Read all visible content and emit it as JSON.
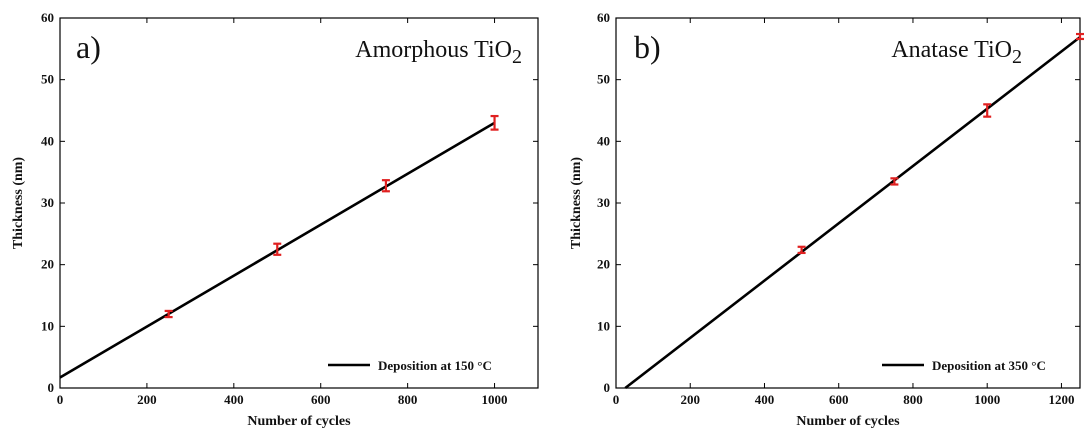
{
  "chart_data": [
    {
      "type": "line",
      "panel_label": "a)",
      "material": {
        "base": "Amorphous TiO",
        "sub": "2"
      },
      "xlabel": "Number of cycles",
      "ylabel": "Thickness (nm)",
      "xlim": [
        0,
        1100
      ],
      "ylim": [
        0,
        60
      ],
      "xticks": [
        0,
        200,
        400,
        600,
        800,
        1000
      ],
      "yticks": [
        0,
        10,
        20,
        30,
        40,
        50,
        60
      ],
      "grid": false,
      "legend_position": "bottom-right",
      "fit": {
        "name": "Deposition at 150 °C",
        "x": [
          0,
          1000
        ],
        "y": [
          1.7,
          43.0
        ],
        "color": "#000000"
      },
      "points": {
        "color": "#e02020",
        "x": [
          250,
          500,
          750,
          1000
        ],
        "y": [
          12.0,
          22.5,
          32.8,
          43.0
        ],
        "err": [
          0.5,
          0.9,
          0.9,
          1.1
        ]
      }
    },
    {
      "type": "line",
      "panel_label": "b)",
      "material": {
        "base": "Anatase TiO",
        "sub": "2"
      },
      "xlabel": "Number of cycles",
      "ylabel": "Thickness (nm)",
      "xlim": [
        0,
        1250
      ],
      "ylim": [
        0,
        60
      ],
      "xticks": [
        0,
        200,
        400,
        600,
        800,
        1000,
        1200
      ],
      "yticks": [
        0,
        10,
        20,
        30,
        40,
        50,
        60
      ],
      "grid": false,
      "legend_position": "bottom-right",
      "fit": {
        "name": "Deposition at 350 °C",
        "x": [
          25,
          1250
        ],
        "y": [
          0,
          56.9
        ],
        "color": "#000000"
      },
      "points": {
        "color": "#e02020",
        "x": [
          500,
          750,
          1000,
          1250
        ],
        "y": [
          22.4,
          33.5,
          45.0,
          57.0
        ],
        "err": [
          0.5,
          0.5,
          1.0,
          0.4
        ]
      }
    }
  ]
}
